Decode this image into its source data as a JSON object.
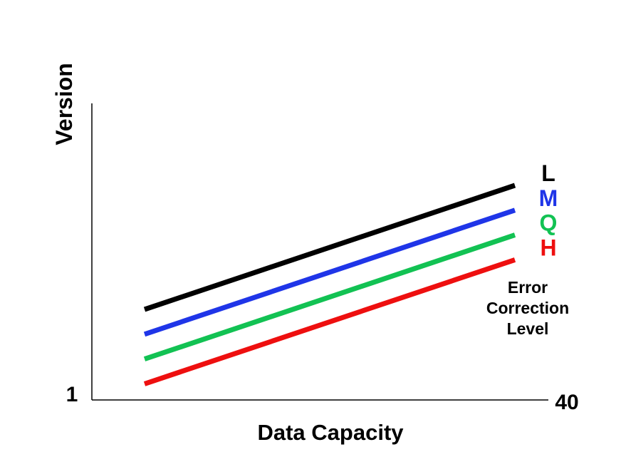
{
  "chart_data": {
    "type": "line",
    "xlabel": "Data Capacity",
    "ylabel": "Version",
    "tick_labels": {
      "y_min": "1",
      "y_max": "40"
    },
    "legend_title": [
      "Error",
      "Correction",
      "Level"
    ],
    "grid": false,
    "series": [
      {
        "name": "L",
        "color": "#000000",
        "values": [
          1.0,
          2.0
        ]
      },
      {
        "name": "M",
        "color": "#1f35e8",
        "values": [
          0.8,
          1.8
        ]
      },
      {
        "name": "Q",
        "color": "#12c253",
        "values": [
          0.6,
          1.6
        ]
      },
      {
        "name": "H",
        "color": "#ee0f0f",
        "values": [
          0.4,
          1.4
        ]
      }
    ]
  }
}
